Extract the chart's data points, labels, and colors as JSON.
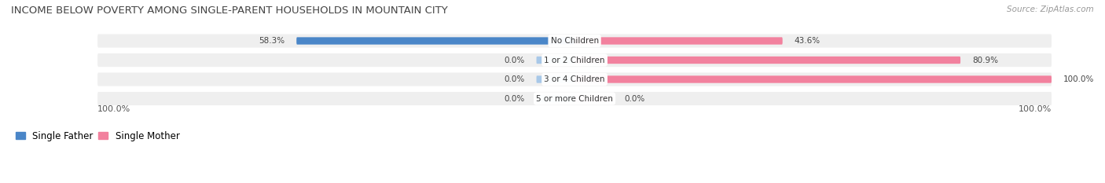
{
  "title": "INCOME BELOW POVERTY AMONG SINGLE-PARENT HOUSEHOLDS IN MOUNTAIN CITY",
  "source": "Source: ZipAtlas.com",
  "categories": [
    "No Children",
    "1 or 2 Children",
    "3 or 4 Children",
    "5 or more Children"
  ],
  "single_father": [
    58.3,
    0.0,
    0.0,
    0.0
  ],
  "single_mother": [
    43.6,
    80.9,
    100.0,
    0.0
  ],
  "father_color_dark": "#4a86c8",
  "father_color_light": "#a8c8e8",
  "mother_color": "#f2819e",
  "row_bg": "#efefef",
  "max_value": 100.0,
  "legend_father": "Single Father",
  "legend_mother": "Single Mother",
  "title_fontsize": 9.5,
  "label_fontsize": 7.5,
  "bottom_left_label": "100.0%",
  "bottom_right_label": "100.0%"
}
